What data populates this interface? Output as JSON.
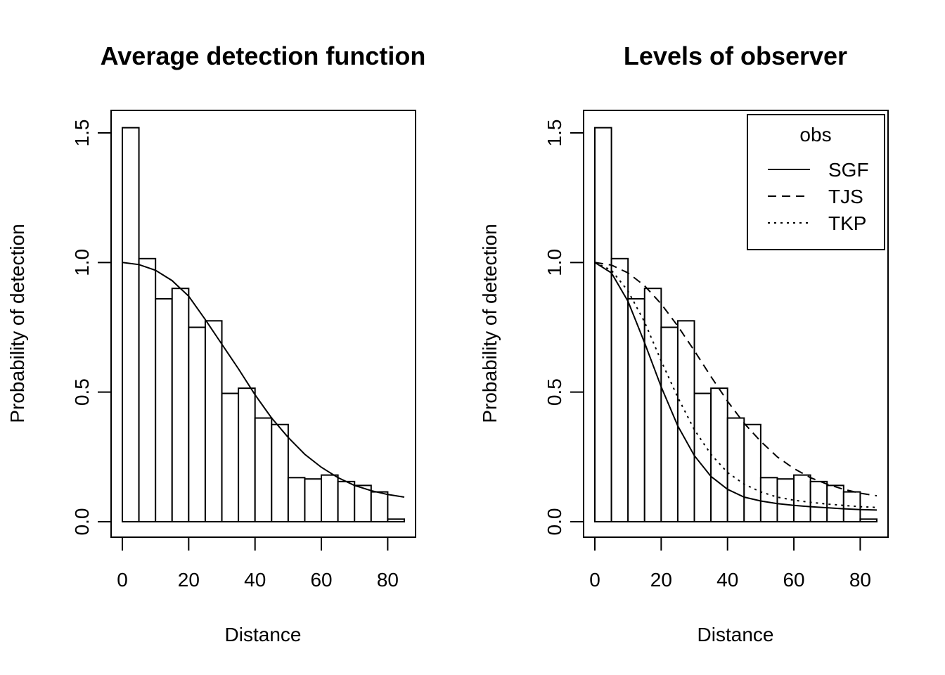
{
  "chart_data": [
    {
      "type": "bar",
      "title": "Average detection function",
      "xlabel": "Distance",
      "ylabel": "Probability of detection",
      "xlim": [
        0,
        85
      ],
      "ylim": [
        0,
        1.5
      ],
      "x_ticks": [
        "0",
        "20",
        "40",
        "60",
        "80"
      ],
      "y_ticks": [
        "0.0",
        "0.5",
        "1.0",
        "1.5"
      ],
      "grid": false,
      "histogram": {
        "bin_edges": [
          0,
          5,
          10,
          15,
          20,
          25,
          30,
          35,
          40,
          45,
          50,
          55,
          60,
          65,
          70,
          75,
          80,
          85
        ],
        "values": [
          1.52,
          1.015,
          0.86,
          0.9,
          0.75,
          0.775,
          0.495,
          0.515,
          0.4,
          0.375,
          0.17,
          0.165,
          0.18,
          0.155,
          0.14,
          0.115,
          0.01
        ]
      },
      "series": [
        {
          "line_style": "solid",
          "x": [
            0,
            5,
            10,
            15,
            20,
            25,
            30,
            35,
            40,
            45,
            50,
            55,
            60,
            65,
            70,
            75,
            80,
            85
          ],
          "y": [
            1.0,
            0.992,
            0.97,
            0.93,
            0.87,
            0.78,
            0.685,
            0.59,
            0.49,
            0.4,
            0.325,
            0.26,
            0.21,
            0.17,
            0.14,
            0.12,
            0.105,
            0.095
          ]
        }
      ]
    },
    {
      "type": "bar",
      "title": "Levels of observer",
      "xlabel": "Distance",
      "ylabel": "Probability of detection",
      "xlim": [
        0,
        85
      ],
      "ylim": [
        0,
        1.5
      ],
      "x_ticks": [
        "0",
        "20",
        "40",
        "60",
        "80"
      ],
      "y_ticks": [
        "0.0",
        "0.5",
        "1.0",
        "1.5"
      ],
      "grid": false,
      "legend": {
        "title": "obs",
        "position": "top-right"
      },
      "histogram": {
        "bin_edges": [
          0,
          5,
          10,
          15,
          20,
          25,
          30,
          35,
          40,
          45,
          50,
          55,
          60,
          65,
          70,
          75,
          80,
          85
        ],
        "values": [
          1.52,
          1.015,
          0.86,
          0.9,
          0.75,
          0.775,
          0.495,
          0.515,
          0.4,
          0.375,
          0.17,
          0.165,
          0.18,
          0.155,
          0.14,
          0.115,
          0.01
        ]
      },
      "series": [
        {
          "name": "SGF",
          "line_style": "solid",
          "x": [
            0,
            5,
            10,
            15,
            20,
            25,
            30,
            35,
            40,
            45,
            50,
            55,
            60,
            65,
            70,
            75,
            80,
            85
          ],
          "y": [
            1.0,
            0.96,
            0.85,
            0.69,
            0.52,
            0.37,
            0.255,
            0.175,
            0.125,
            0.095,
            0.08,
            0.07,
            0.063,
            0.058,
            0.054,
            0.05,
            0.047,
            0.045
          ]
        },
        {
          "name": "TJS",
          "line_style": "dashed",
          "x": [
            0,
            5,
            10,
            15,
            20,
            25,
            30,
            35,
            40,
            45,
            50,
            55,
            60,
            65,
            70,
            75,
            80,
            85
          ],
          "y": [
            1.0,
            0.99,
            0.96,
            0.91,
            0.84,
            0.755,
            0.66,
            0.56,
            0.465,
            0.38,
            0.31,
            0.25,
            0.205,
            0.17,
            0.145,
            0.125,
            0.11,
            0.1
          ]
        },
        {
          "name": "TKP",
          "line_style": "dotted",
          "x": [
            0,
            5,
            10,
            15,
            20,
            25,
            30,
            35,
            40,
            45,
            50,
            55,
            60,
            65,
            70,
            75,
            80,
            85
          ],
          "y": [
            1.0,
            0.97,
            0.89,
            0.77,
            0.62,
            0.48,
            0.355,
            0.26,
            0.19,
            0.145,
            0.115,
            0.095,
            0.083,
            0.075,
            0.068,
            0.063,
            0.058,
            0.055
          ]
        }
      ]
    }
  ]
}
